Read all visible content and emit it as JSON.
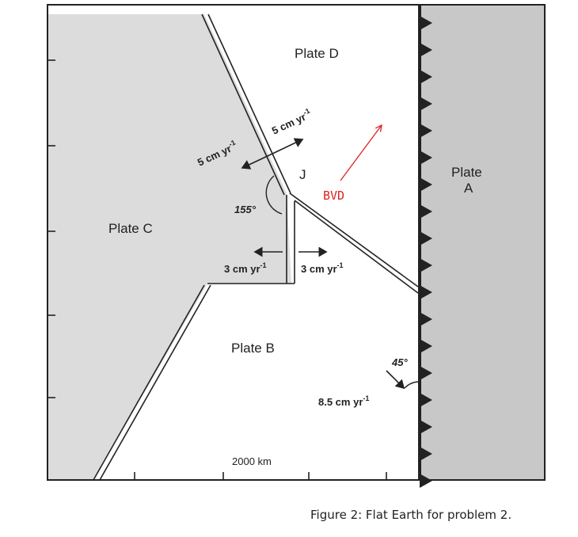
{
  "diagram": {
    "plates": {
      "d": "Plate D",
      "c": "Plate C",
      "b": "Plate B",
      "a_line1": "Plate",
      "a_line2": "A"
    },
    "rates": {
      "ridge_d": "5 cm yr",
      "ridge_c": "5 cm yr",
      "lower_left": "3 cm yr",
      "lower_right": "3 cm yr",
      "subduction": "8.5 cm yr",
      "exponent": "-1"
    },
    "angles": {
      "junction": "155°",
      "subduction": "45°"
    },
    "junction_label": "J",
    "velocity_annotation": "BVD",
    "scale_label": "2000 km",
    "colors": {
      "plate_shade": "#dcdcdc",
      "plate_a_shade": "#c8c8c8",
      "outline": "#222222",
      "annotation": "#e02020"
    }
  },
  "caption": "Figure 2: Flat Earth for problem 2."
}
